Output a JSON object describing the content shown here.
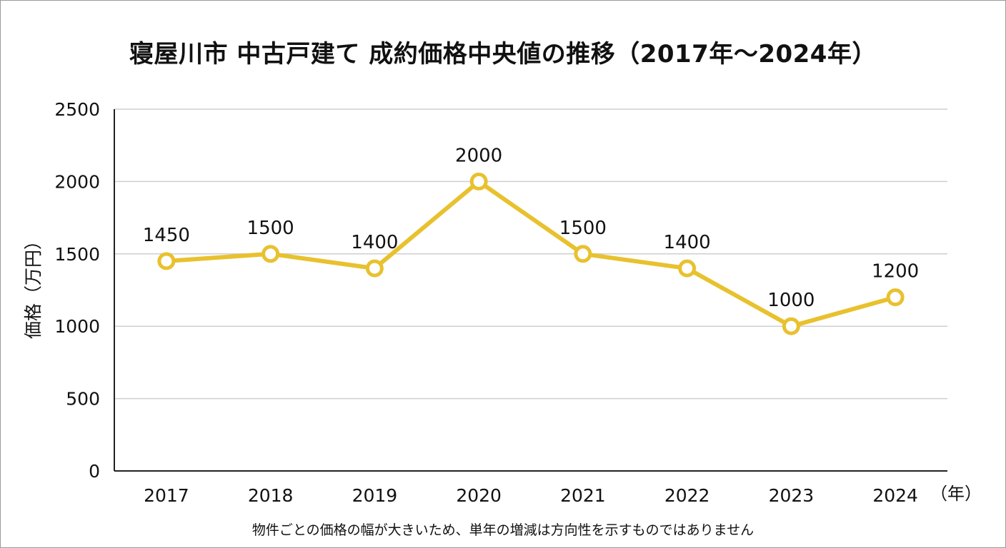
{
  "title": "寝屋川市 中古戸建て 成約価格中央値の推移（2017年〜2024年）",
  "note": "物件ごとの価格の幅が大きいため、単年の増減は方向性を示すものではありません",
  "chart_data": {
    "type": "line",
    "title": "寝屋川市 中古戸建て 成約価格中央値の推移（2017年〜2024年）",
    "xlabel": "（年）",
    "ylabel": "価格（万円）",
    "categories": [
      "2017",
      "2018",
      "2019",
      "2020",
      "2021",
      "2022",
      "2023",
      "2024"
    ],
    "values": [
      1450,
      1500,
      1400,
      2000,
      1500,
      1400,
      1000,
      1200
    ],
    "data_labels": [
      "1450",
      "1500",
      "1400",
      "2000",
      "1500",
      "1400",
      "1000",
      "1200"
    ],
    "yticks": [
      "0",
      "500",
      "1000",
      "1500",
      "2000",
      "2500"
    ],
    "ytick_values": [
      0,
      500,
      1000,
      1500,
      2000,
      2500
    ],
    "ylim": [
      0,
      2500
    ],
    "grid": true,
    "legend": "none",
    "colors": {
      "line": "#E8C12E",
      "grid": "#cfcfcf",
      "axis": "#222222"
    }
  }
}
